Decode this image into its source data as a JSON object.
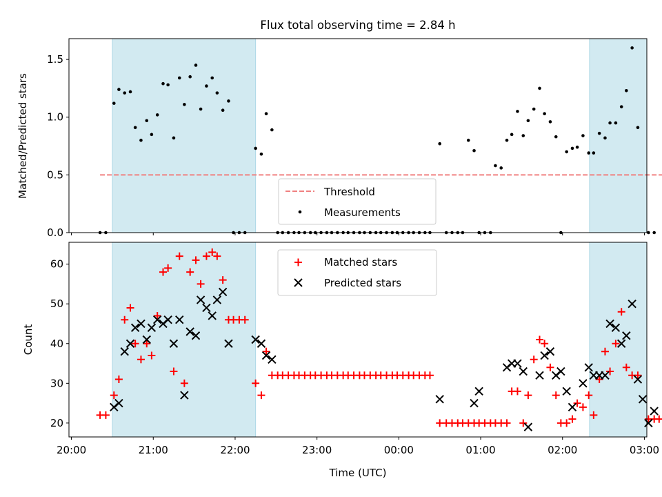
{
  "title": "Flux total observing time = 2.84 h",
  "xlabel": "Time (UTC)",
  "chart_data": [
    {
      "type": "scatter",
      "ylabel": "Matched/Predicted stars",
      "xlim": [
        19.97,
        27.03
      ],
      "ylim": [
        0,
        1.68
      ],
      "yticks": [
        0.0,
        0.5,
        1.0,
        1.5
      ],
      "ytick_labels": [
        "0.0",
        "0.5",
        "1.0",
        "1.5"
      ],
      "shaded_spans": [
        [
          20.5,
          22.25
        ],
        [
          26.33,
          27.42
        ]
      ],
      "shade_color": "#add8e6",
      "legend_placement": "bottom-center",
      "threshold": {
        "name": "Threshold",
        "y": 0.5,
        "x": [
          20.35,
          27.55
        ],
        "color": "#f08080",
        "style": "dashed"
      },
      "series": [
        {
          "name": "Measurements",
          "color": "#000000",
          "points": [
            [
              20.35,
              0
            ],
            [
              20.42,
              0
            ],
            [
              20.52,
              1.12
            ],
            [
              20.58,
              1.24
            ],
            [
              20.65,
              1.21
            ],
            [
              20.72,
              1.22
            ],
            [
              20.78,
              0.91
            ],
            [
              20.85,
              0.8
            ],
            [
              20.92,
              0.97
            ],
            [
              20.98,
              0.85
            ],
            [
              21.05,
              1.02
            ],
            [
              21.12,
              1.29
            ],
            [
              21.18,
              1.28
            ],
            [
              21.25,
              0.82
            ],
            [
              21.32,
              1.34
            ],
            [
              21.38,
              1.11
            ],
            [
              21.45,
              1.35
            ],
            [
              21.52,
              1.45
            ],
            [
              21.58,
              1.07
            ],
            [
              21.65,
              1.27
            ],
            [
              21.72,
              1.34
            ],
            [
              21.78,
              1.21
            ],
            [
              21.85,
              1.06
            ],
            [
              21.92,
              1.14
            ],
            [
              21.98,
              0
            ],
            [
              22.05,
              0
            ],
            [
              22.12,
              0
            ],
            [
              22.25,
              0.73
            ],
            [
              22.32,
              0.68
            ],
            [
              22.38,
              1.03
            ],
            [
              22.45,
              0.89
            ],
            [
              22.52,
              0
            ],
            [
              22.58,
              0
            ],
            [
              22.65,
              0
            ],
            [
              22.72,
              0
            ],
            [
              22.78,
              0
            ],
            [
              22.85,
              0
            ],
            [
              22.92,
              0
            ],
            [
              22.98,
              0
            ],
            [
              23.05,
              0
            ],
            [
              23.12,
              0
            ],
            [
              23.18,
              0
            ],
            [
              23.25,
              0
            ],
            [
              23.32,
              0
            ],
            [
              23.38,
              0
            ],
            [
              23.45,
              0
            ],
            [
              23.52,
              0
            ],
            [
              23.58,
              0
            ],
            [
              23.65,
              0
            ],
            [
              23.72,
              0
            ],
            [
              23.78,
              0
            ],
            [
              23.85,
              0
            ],
            [
              23.92,
              0
            ],
            [
              23.98,
              0
            ],
            [
              24.05,
              0
            ],
            [
              24.12,
              0
            ],
            [
              24.18,
              0
            ],
            [
              24.25,
              0
            ],
            [
              24.32,
              0
            ],
            [
              24.38,
              0
            ],
            [
              24.5,
              0.77
            ],
            [
              24.58,
              0
            ],
            [
              24.65,
              0
            ],
            [
              24.72,
              0
            ],
            [
              24.78,
              0
            ],
            [
              24.85,
              0.8
            ],
            [
              24.92,
              0.71
            ],
            [
              24.98,
              0
            ],
            [
              25.05,
              0
            ],
            [
              25.12,
              0
            ],
            [
              25.18,
              0.58
            ],
            [
              25.25,
              0.56
            ],
            [
              25.32,
              0.8
            ],
            [
              25.38,
              0.85
            ],
            [
              25.45,
              1.05
            ],
            [
              25.52,
              0.84
            ],
            [
              25.58,
              0.97
            ],
            [
              25.65,
              1.07
            ],
            [
              25.72,
              1.25
            ],
            [
              25.78,
              1.03
            ],
            [
              25.85,
              0.96
            ],
            [
              25.92,
              0.83
            ],
            [
              25.98,
              0
            ],
            [
              26.05,
              0.7
            ],
            [
              26.12,
              0.73
            ],
            [
              26.18,
              0.74
            ],
            [
              26.25,
              0.84
            ],
            [
              26.32,
              0.69
            ],
            [
              26.38,
              0.69
            ],
            [
              26.45,
              0.86
            ],
            [
              26.52,
              0.82
            ],
            [
              26.58,
              0.95
            ],
            [
              26.65,
              0.95
            ],
            [
              26.72,
              1.09
            ],
            [
              26.78,
              1.23
            ],
            [
              26.85,
              1.6
            ],
            [
              26.92,
              0.91
            ],
            [
              27.05,
              0
            ],
            [
              27.12,
              0
            ]
          ]
        }
      ]
    },
    {
      "type": "scatter",
      "ylabel": "Count",
      "xlim": [
        19.97,
        27.03
      ],
      "ylim": [
        16.5,
        65.5
      ],
      "yticks": [
        20,
        30,
        40,
        50,
        60
      ],
      "ytick_labels": [
        "20",
        "30",
        "40",
        "50",
        "60"
      ],
      "xticks": [
        20,
        21,
        22,
        23,
        24,
        25,
        26,
        27
      ],
      "xtick_labels": [
        "20:00",
        "21:00",
        "22:00",
        "23:00",
        "00:00",
        "01:00",
        "02:00",
        "03:00"
      ],
      "shaded_spans": [
        [
          20.5,
          22.25
        ],
        [
          26.33,
          27.42
        ]
      ],
      "shade_color": "#add8e6",
      "legend_placement": "top-center",
      "series": [
        {
          "name": "Matched stars",
          "color": "#ff0000",
          "marker": "+",
          "points": [
            [
              20.35,
              22
            ],
            [
              20.42,
              22
            ],
            [
              20.52,
              27
            ],
            [
              20.58,
              31
            ],
            [
              20.65,
              46
            ],
            [
              20.72,
              49
            ],
            [
              20.78,
              40
            ],
            [
              20.85,
              36
            ],
            [
              20.92,
              40
            ],
            [
              20.98,
              37
            ],
            [
              21.05,
              47
            ],
            [
              21.12,
              58
            ],
            [
              21.18,
              59
            ],
            [
              21.25,
              33
            ],
            [
              21.32,
              62
            ],
            [
              21.38,
              30
            ],
            [
              21.45,
              58
            ],
            [
              21.52,
              61
            ],
            [
              21.58,
              55
            ],
            [
              21.65,
              62
            ],
            [
              21.72,
              63
            ],
            [
              21.78,
              62
            ],
            [
              21.85,
              56
            ],
            [
              21.92,
              46
            ],
            [
              21.98,
              46
            ],
            [
              22.05,
              46
            ],
            [
              22.12,
              46
            ],
            [
              22.25,
              30
            ],
            [
              22.32,
              27
            ],
            [
              22.38,
              38
            ],
            [
              22.45,
              32
            ],
            [
              22.52,
              32
            ],
            [
              22.58,
              32
            ],
            [
              22.65,
              32
            ],
            [
              22.72,
              32
            ],
            [
              22.78,
              32
            ],
            [
              22.85,
              32
            ],
            [
              22.92,
              32
            ],
            [
              22.98,
              32
            ],
            [
              23.05,
              32
            ],
            [
              23.12,
              32
            ],
            [
              23.18,
              32
            ],
            [
              23.25,
              32
            ],
            [
              23.32,
              32
            ],
            [
              23.38,
              32
            ],
            [
              23.45,
              32
            ],
            [
              23.52,
              32
            ],
            [
              23.58,
              32
            ],
            [
              23.65,
              32
            ],
            [
              23.72,
              32
            ],
            [
              23.78,
              32
            ],
            [
              23.85,
              32
            ],
            [
              23.92,
              32
            ],
            [
              23.98,
              32
            ],
            [
              24.05,
              32
            ],
            [
              24.12,
              32
            ],
            [
              24.18,
              32
            ],
            [
              24.25,
              32
            ],
            [
              24.32,
              32
            ],
            [
              24.38,
              32
            ],
            [
              24.5,
              20
            ],
            [
              24.58,
              20
            ],
            [
              24.65,
              20
            ],
            [
              24.72,
              20
            ],
            [
              24.78,
              20
            ],
            [
              24.85,
              20
            ],
            [
              24.92,
              20
            ],
            [
              24.98,
              20
            ],
            [
              25.05,
              20
            ],
            [
              25.12,
              20
            ],
            [
              25.18,
              20
            ],
            [
              25.25,
              20
            ],
            [
              25.32,
              20
            ],
            [
              25.38,
              28
            ],
            [
              25.45,
              28
            ],
            [
              25.52,
              20
            ],
            [
              25.58,
              27
            ],
            [
              25.65,
              36
            ],
            [
              25.72,
              41
            ],
            [
              25.78,
              40
            ],
            [
              25.85,
              34
            ],
            [
              25.92,
              27
            ],
            [
              25.98,
              20
            ],
            [
              26.05,
              20
            ],
            [
              26.12,
              21
            ],
            [
              26.18,
              25
            ],
            [
              26.25,
              24
            ],
            [
              26.32,
              27
            ],
            [
              26.38,
              22
            ],
            [
              26.45,
              31
            ],
            [
              26.52,
              38
            ],
            [
              26.58,
              33
            ],
            [
              26.65,
              40
            ],
            [
              26.72,
              48
            ],
            [
              26.78,
              34
            ],
            [
              26.85,
              32
            ],
            [
              26.92,
              32
            ],
            [
              27.05,
              21
            ],
            [
              27.12,
              21
            ],
            [
              27.18,
              21
            ]
          ]
        },
        {
          "name": "Predicted stars",
          "color": "#000000",
          "marker": "x",
          "points": [
            [
              20.52,
              24
            ],
            [
              20.58,
              25
            ],
            [
              20.65,
              38
            ],
            [
              20.72,
              40
            ],
            [
              20.78,
              44
            ],
            [
              20.85,
              45
            ],
            [
              20.92,
              41
            ],
            [
              20.98,
              44
            ],
            [
              21.05,
              46
            ],
            [
              21.12,
              45
            ],
            [
              21.18,
              46
            ],
            [
              21.25,
              40
            ],
            [
              21.32,
              46
            ],
            [
              21.38,
              27
            ],
            [
              21.45,
              43
            ],
            [
              21.52,
              42
            ],
            [
              21.58,
              51
            ],
            [
              21.65,
              49
            ],
            [
              21.72,
              47
            ],
            [
              21.78,
              51
            ],
            [
              21.85,
              53
            ],
            [
              21.92,
              40
            ],
            [
              22.25,
              41
            ],
            [
              22.32,
              40
            ],
            [
              22.38,
              37
            ],
            [
              22.45,
              36
            ],
            [
              24.5,
              26
            ],
            [
              24.92,
              25
            ],
            [
              24.98,
              28
            ],
            [
              25.32,
              34
            ],
            [
              25.38,
              35
            ],
            [
              25.45,
              35
            ],
            [
              25.52,
              33
            ],
            [
              25.58,
              19
            ],
            [
              25.72,
              32
            ],
            [
              25.78,
              37
            ],
            [
              25.85,
              38
            ],
            [
              25.92,
              32
            ],
            [
              25.98,
              33
            ],
            [
              26.05,
              28
            ],
            [
              26.12,
              24
            ],
            [
              26.25,
              30
            ],
            [
              26.32,
              34
            ],
            [
              26.38,
              32
            ],
            [
              26.45,
              32
            ],
            [
              26.52,
              32
            ],
            [
              26.58,
              45
            ],
            [
              26.65,
              44
            ],
            [
              26.72,
              40
            ],
            [
              26.78,
              42
            ],
            [
              26.85,
              50
            ],
            [
              26.92,
              31
            ],
            [
              26.98,
              26
            ],
            [
              27.05,
              20
            ],
            [
              27.12,
              23
            ]
          ]
        }
      ]
    }
  ]
}
